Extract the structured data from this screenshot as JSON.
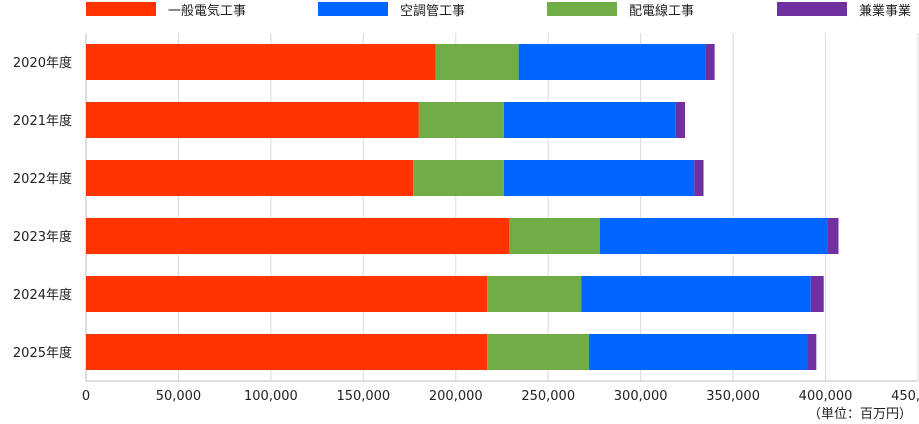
{
  "chart_data": {
    "type": "bar",
    "orientation": "horizontal",
    "stacked": true,
    "categories": [
      "2020年度",
      "2021年度",
      "2022年度",
      "2023年度",
      "2024年度",
      "2025年度"
    ],
    "series": [
      {
        "name": "一般電気工事",
        "color": "#ff3300",
        "values": [
          189000,
          180000,
          177000,
          229000,
          217000,
          217000
        ]
      },
      {
        "name": "配電線工事",
        "color": "#70ad47",
        "values": [
          45000,
          46000,
          49000,
          49000,
          51000,
          55000
        ]
      },
      {
        "name": "空調管工事",
        "color": "#0066ff",
        "values": [
          101000,
          93000,
          103000,
          123000,
          124000,
          118000
        ]
      },
      {
        "name": "兼業事業",
        "color": "#7030a0",
        "values": [
          5000,
          5000,
          5000,
          6000,
          7000,
          5000
        ]
      }
    ],
    "legend_order": [
      "一般電気工事",
      "空調管工事",
      "配電線工事",
      "兼業事業"
    ],
    "legend_position": "top",
    "xlim": [
      0,
      450000
    ],
    "xticks": [
      "0",
      "50,000",
      "100,000",
      "150,000",
      "200,000",
      "250,000",
      "300,000",
      "350,000",
      "400,000",
      "450,000"
    ],
    "unit_note": "（単位：百万円）",
    "grid": true
  }
}
